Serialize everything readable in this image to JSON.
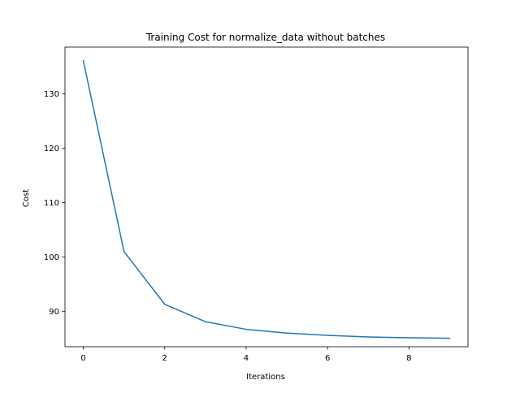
{
  "chart_data": {
    "type": "line",
    "title": "Training Cost for normalize_data without batches",
    "xlabel": "Iterations",
    "ylabel": "Cost",
    "xlim": [
      -0.45,
      9.45
    ],
    "ylim": [
      83.5,
      138.6
    ],
    "xticks": [
      0,
      2,
      4,
      6,
      8
    ],
    "yticks": [
      90,
      100,
      110,
      120,
      130
    ],
    "grid": false,
    "legend": "none",
    "series": [
      {
        "x": [
          0,
          1,
          2,
          3,
          4,
          5,
          6,
          7,
          8,
          9
        ],
        "values": [
          136.1,
          101.0,
          91.3,
          88.1,
          86.7,
          86.0,
          85.6,
          85.3,
          85.15,
          85.05
        ],
        "color": "#1f77b4"
      }
    ]
  }
}
